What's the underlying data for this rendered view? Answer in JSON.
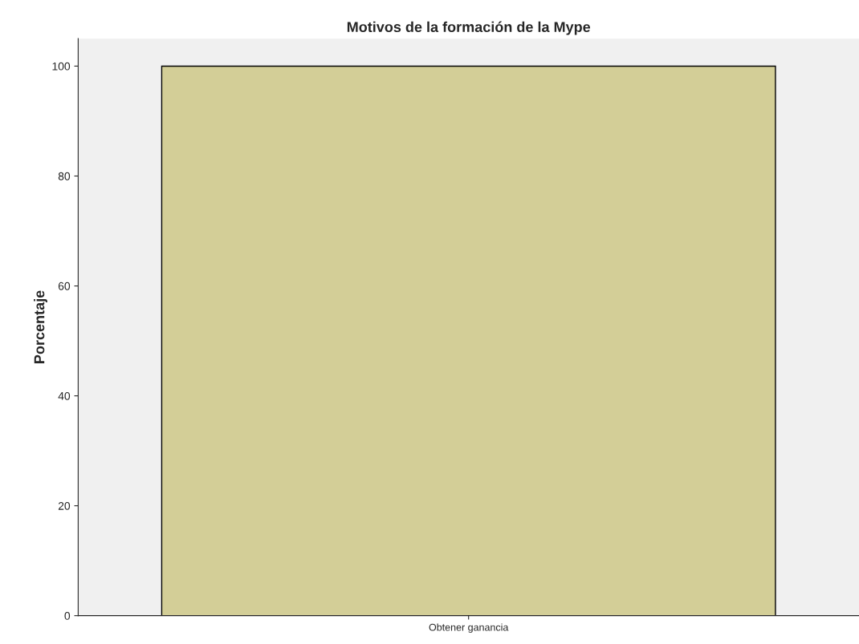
{
  "chart_data": {
    "type": "bar",
    "title": "Motivos de la formación de la Mype",
    "ylabel": "Porcentaje",
    "categories": [
      "Obtener ganancia"
    ],
    "values": [
      100
    ],
    "color": "#d3ce97",
    "ylim": [
      0,
      105
    ],
    "yticks": [
      0,
      20,
      40,
      60,
      80,
      100
    ],
    "grid": false
  }
}
